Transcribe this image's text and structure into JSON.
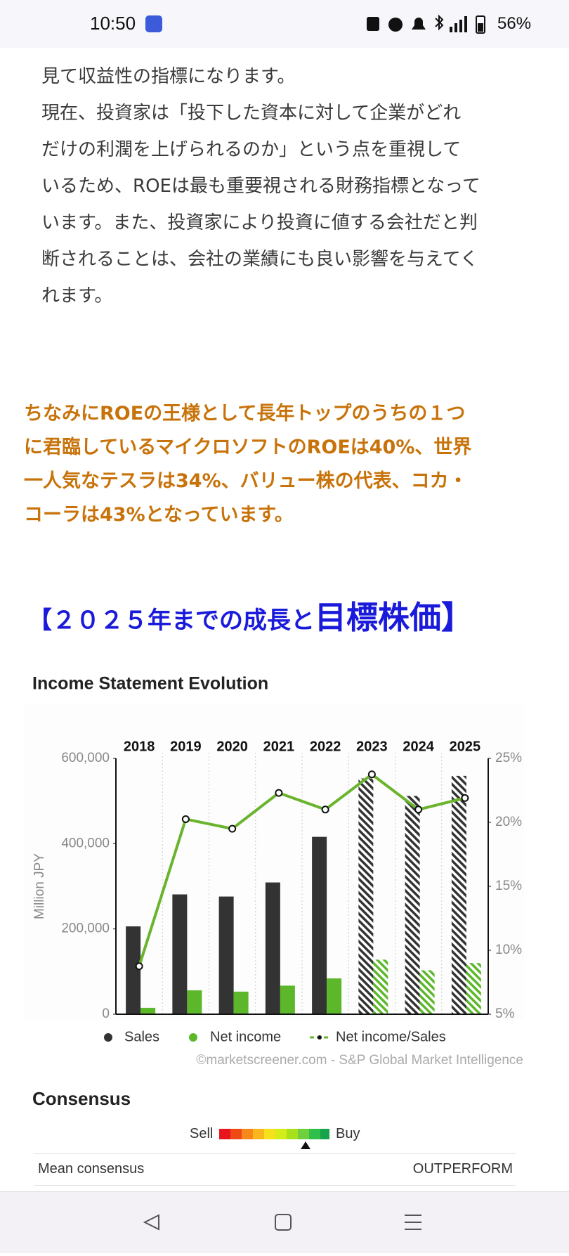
{
  "status_bar": {
    "time": "10:50",
    "battery": "56%"
  },
  "article": {
    "lines": [
      "見て収益性の指標になります。",
      "現在、投資家は「投下した資本に対して企業がどれ",
      "だけの利潤を上げられるのか」という点を重視して",
      "いるため、ROEは最も重要視される財務指標となって",
      "います。また、投資家により投資に値する会社だと判",
      "断されることは、会社の業績にも良い影響を与えてく",
      "れます。"
    ]
  },
  "highlight": {
    "lines": [
      "ちなみにROEの王様として長年トップのうちの１つ",
      "に君臨しているマイクロソフトのROEは40%、世界",
      "一人気なテスラは34%、バリュー株の代表、コカ・",
      "コーラは43%となっています。"
    ]
  },
  "heading": {
    "part1": "【２０２５年までの成長と",
    "part2": "目標株価】"
  },
  "chart_data": {
    "type": "bar",
    "title": "Income Statement Evolution",
    "categories": [
      "2018",
      "2019",
      "2020",
      "2021",
      "2022",
      "2023",
      "2024",
      "2025"
    ],
    "forecast": [
      false,
      false,
      false,
      false,
      false,
      true,
      true,
      true
    ],
    "y_label": "Million JPY",
    "ylim": [
      0,
      600000
    ],
    "yticks": [
      0,
      {
        "value": 200000,
        "label": "200,000"
      },
      {
        "value": 400000,
        "label": "400,000"
      },
      {
        "value": 600000,
        "label": "600,000"
      }
    ],
    "y2lim": [
      5,
      25
    ],
    "y2ticks": [
      {
        "value": 5,
        "label": "5%"
      },
      {
        "value": 10,
        "label": "10%"
      },
      {
        "value": 15,
        "label": "15%"
      },
      {
        "value": 20,
        "label": "20%"
      },
      {
        "value": 25,
        "label": "25%"
      }
    ],
    "series": [
      {
        "name": "Sales",
        "type": "bar",
        "color": "#333333",
        "values": [
          206000,
          281000,
          276000,
          309000,
          416000,
          553000,
          512000,
          559000
        ]
      },
      {
        "name": "Net income",
        "type": "bar",
        "color": "#5cb82a",
        "values": [
          15000,
          56000,
          53000,
          67000,
          84000,
          128000,
          103000,
          120000
        ]
      },
      {
        "name": "Net income/Sales",
        "type": "line",
        "axis": "y2",
        "color": "#6ab42d",
        "values": [
          8.75,
          20.25,
          19.5,
          22.3,
          21,
          23.75,
          21,
          21.9
        ]
      }
    ],
    "source": "©marketscreener.com - S&P Global Market Intelligence"
  },
  "consensus": {
    "title": "Consensus",
    "sell": "Sell",
    "buy": "Buy",
    "row_label": "Mean consensus",
    "row_value": "OUTPERFORM"
  }
}
